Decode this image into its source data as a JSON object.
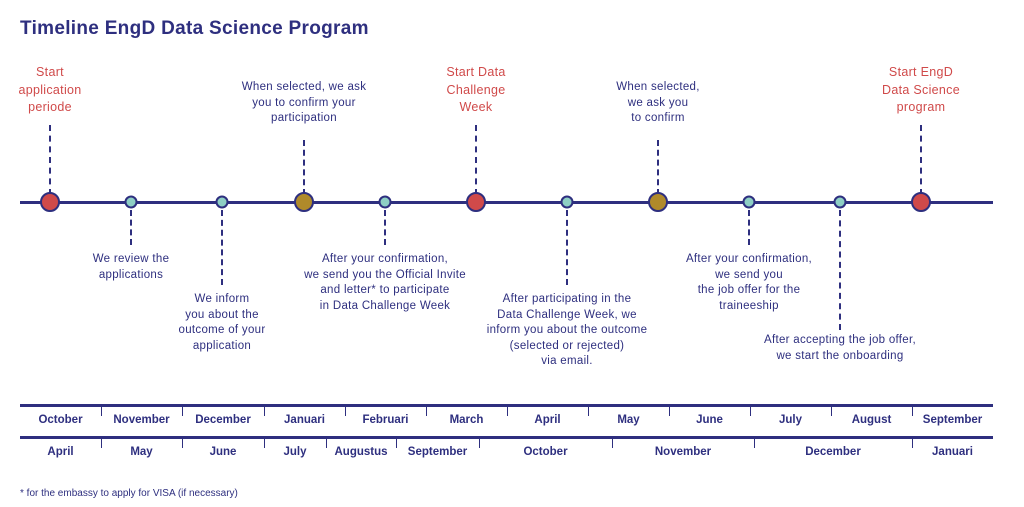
{
  "title": "Timeline EngD Data Science Program",
  "colors": {
    "navy": "#2e2f7f",
    "milestone": "#d04a4a",
    "decision": "#b08a2a",
    "step": "#8ecfc4"
  },
  "events": [
    {
      "type": "milestone",
      "position": "above",
      "text": "Start\napplication\nperiode"
    },
    {
      "type": "step",
      "position": "below",
      "text": "We review the\napplications"
    },
    {
      "type": "step",
      "position": "below",
      "text": "We inform\nyou about the\noutcome of your\napplication"
    },
    {
      "type": "decision",
      "position": "above",
      "text": "When selected, we ask\nyou to confirm your\nparticipation"
    },
    {
      "type": "step",
      "position": "below",
      "text": "After your confirmation,\nwe send you the Official Invite\nand letter* to participate\nin Data Challenge Week"
    },
    {
      "type": "milestone",
      "position": "above",
      "text": "Start Data\nChallenge\nWeek"
    },
    {
      "type": "step",
      "position": "below",
      "text": "After participating in the\nData Challenge Week, we\ninform you about the outcome\n(selected or rejected)\nvia email."
    },
    {
      "type": "decision",
      "position": "above",
      "text": "When selected,\nwe ask you\nto confirm"
    },
    {
      "type": "step",
      "position": "below",
      "text": "After your confirmation,\nwe send you\nthe job offer for the\ntraineeship"
    },
    {
      "type": "step",
      "position": "below",
      "text": "After accepting the job offer,\nwe start the onboarding"
    },
    {
      "type": "milestone",
      "position": "above",
      "text": "Start EngD\nData Science\nprogram"
    }
  ],
  "months_row1": [
    "October",
    "November",
    "December",
    "Januari",
    "Februari",
    "March",
    "April",
    "May",
    "June",
    "July",
    "August",
    "September"
  ],
  "months_row2": [
    "April",
    "May",
    "June",
    "July",
    "Augustus",
    "September",
    "October",
    "November",
    "December",
    "Januari"
  ],
  "footnote": "* for the embassy to apply for VISA (if necessary)"
}
